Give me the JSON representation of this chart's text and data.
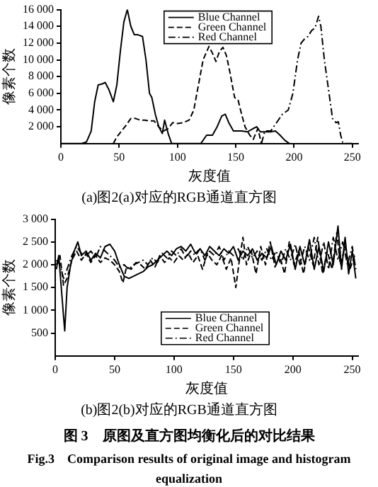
{
  "chart_data": [
    {
      "type": "line",
      "title": "(a)图2(a)对应的RGB通道直方图",
      "xlabel": "灰度值",
      "ylabel": "像素个数",
      "xlim": [
        0,
        255
      ],
      "xticks": [
        0,
        50,
        100,
        150,
        200,
        250
      ],
      "ylim": [
        0,
        16000
      ],
      "yticks": [
        {
          "value": 2000,
          "label": "2 000"
        },
        {
          "value": 4000,
          "label": "4 000"
        },
        {
          "value": 6000,
          "label": "6 000"
        },
        {
          "value": 8000,
          "label": "8 000"
        },
        {
          "value": 10000,
          "label": "10 000"
        },
        {
          "value": 12000,
          "label": "12 000"
        },
        {
          "value": 14000,
          "label": "14 000"
        },
        {
          "value": 16000,
          "label": "16 000"
        }
      ],
      "grid": false,
      "legend": "top",
      "marker": "none",
      "series": [
        {
          "name": "Blue Channel",
          "color": "#000000",
          "line_style": "solid",
          "x": [
            0,
            18,
            22,
            26,
            29,
            32,
            35,
            38,
            41,
            45,
            48,
            51,
            54,
            57,
            60,
            63,
            66,
            70,
            73,
            76,
            78,
            81,
            84,
            87,
            89,
            92,
            95,
            120,
            125,
            130,
            134,
            138,
            141,
            144,
            148,
            155,
            160,
            165,
            168,
            171,
            176,
            180,
            184,
            188,
            192,
            196
          ],
          "values": [
            0,
            0,
            200,
            1500,
            5000,
            7000,
            7100,
            7300,
            6500,
            5000,
            7000,
            11000,
            14500,
            16000,
            14000,
            13000,
            13000,
            12800,
            10000,
            6000,
            5500,
            3500,
            2000,
            1200,
            2800,
            1200,
            0,
            0,
            1000,
            1000,
            2000,
            3300,
            3500,
            2500,
            1500,
            1500,
            1400,
            1800,
            2000,
            1400,
            1400,
            1400,
            1500,
            1000,
            400,
            0
          ]
        },
        {
          "name": "Green Channel",
          "color": "#000000",
          "line_style": "dashed",
          "x": [
            45,
            48,
            52,
            56,
            60,
            64,
            68,
            72,
            76,
            80,
            84,
            88,
            92,
            96,
            100,
            105,
            110,
            114,
            118,
            122,
            127,
            130,
            133,
            136,
            139,
            142,
            145,
            149,
            152,
            155,
            158,
            162,
            165,
            169,
            172
          ],
          "values": [
            0,
            800,
            1500,
            2200,
            3000,
            3000,
            2800,
            2800,
            2700,
            2700,
            2000,
            1500,
            1800,
            2500,
            2400,
            2500,
            2800,
            4000,
            7000,
            10000,
            11600,
            10800,
            9800,
            11000,
            11500,
            10500,
            8500,
            5500,
            5200,
            3500,
            2000,
            1000,
            500,
            1800,
            0
          ]
        },
        {
          "name": "Red Channel",
          "color": "#000000",
          "line_style": "dotted",
          "x": [
            172,
            175,
            180,
            185,
            190,
            195,
            199,
            203,
            206,
            209,
            212,
            215,
            218,
            221,
            223,
            226,
            228,
            231,
            233,
            236,
            238,
            240,
            242,
            250
          ],
          "values": [
            0,
            1500,
            1500,
            2500,
            3500,
            4000,
            6000,
            10000,
            12000,
            12500,
            12800,
            13500,
            13800,
            15200,
            14000,
            10000,
            8000,
            5000,
            3000,
            2500,
            2600,
            1000,
            0,
            0
          ]
        }
      ]
    },
    {
      "type": "line",
      "title": "(b)图2(b)对应的RGB通道直方图",
      "xlabel": "灰度值",
      "ylabel": "像素个数",
      "xlim": [
        0,
        255
      ],
      "xticks": [
        0,
        50,
        100,
        150,
        200,
        250
      ],
      "ylim": [
        0,
        3000
      ],
      "yticks": [
        500,
        {
          "value": 1000,
          "label": "1 000"
        },
        {
          "value": 1500,
          "label": "1 500"
        },
        {
          "value": 2000,
          "label": "2 000"
        },
        {
          "value": 2500,
          "label": "2 500"
        },
        {
          "value": 3000,
          "label": "3 000"
        }
      ],
      "grid": false,
      "legend": "bottom",
      "marker": "none",
      "annotations": [
        "图 3　原图及直方图均衡化后的对比结果",
        "Fig.3　Comparison results of original image and histogram equalization"
      ],
      "series": [
        {
          "name": "Blue Channel",
          "color": "#000000",
          "line_style": "solid",
          "x": [
            1,
            3,
            6,
            8,
            10,
            13,
            16,
            19,
            22,
            26,
            30,
            34,
            38,
            42,
            46,
            50,
            54,
            58,
            62,
            66,
            70,
            74,
            78,
            82,
            86,
            90,
            94,
            98,
            102,
            106,
            110,
            114,
            118,
            122,
            126,
            130,
            134,
            138,
            142,
            146,
            150,
            154,
            158,
            162,
            166,
            170,
            174,
            178,
            182,
            186,
            190,
            194,
            198,
            202,
            206,
            210,
            214,
            218,
            222,
            226,
            230,
            234,
            238,
            241,
            244,
            247,
            250,
            253
          ],
          "values": [
            1900,
            2200,
            1200,
            550,
            1500,
            2000,
            2300,
            2500,
            2200,
            2300,
            2100,
            2250,
            2150,
            2400,
            2450,
            2300,
            2000,
            1750,
            1700,
            1750,
            1800,
            1850,
            1950,
            2000,
            2100,
            2200,
            2300,
            2200,
            2350,
            2400,
            2300,
            2450,
            2250,
            2350,
            2200,
            2400,
            2300,
            2200,
            2350,
            2250,
            2400,
            2100,
            2300,
            2200,
            2350,
            2100,
            2250,
            2150,
            2400,
            2000,
            2300,
            2100,
            2450,
            1900,
            2400,
            2000,
            2550,
            1900,
            2400,
            1850,
            2500,
            2000,
            2850,
            1900,
            2600,
            1800,
            2300,
            1700
          ]
        },
        {
          "name": "Green Channel",
          "color": "#000000",
          "line_style": "dashed",
          "x": [
            1,
            4,
            7,
            10,
            14,
            18,
            22,
            26,
            30,
            34,
            38,
            42,
            46,
            50,
            54,
            57,
            60,
            64,
            68,
            72,
            76,
            80,
            84,
            88,
            92,
            96,
            100,
            104,
            108,
            112,
            116,
            120,
            124,
            128,
            132,
            136,
            140,
            144,
            148,
            152,
            155,
            158,
            161,
            165,
            169,
            173,
            177,
            181,
            185,
            189,
            193,
            197,
            201,
            205,
            209,
            213,
            217,
            221,
            225,
            229,
            233,
            237,
            240,
            244,
            248,
            252
          ],
          "values": [
            2000,
            2200,
            1550,
            1700,
            2100,
            2300,
            2100,
            2250,
            2050,
            2200,
            2050,
            2150,
            2100,
            2000,
            1850,
            1600,
            1950,
            1900,
            2050,
            2000,
            1900,
            2100,
            1950,
            2200,
            2050,
            2150,
            2050,
            2200,
            2100,
            2250,
            2050,
            2200,
            1900,
            2250,
            2100,
            2000,
            2200,
            1900,
            2150,
            1500,
            2100,
            2600,
            2000,
            2300,
            1800,
            2400,
            2000,
            2500,
            1950,
            2200,
            1800,
            2500,
            2000,
            2300,
            1800,
            2400,
            2000,
            2600,
            1800,
            2300,
            1900,
            2700,
            2000,
            2400,
            1900,
            2200
          ]
        },
        {
          "name": "Red Channel",
          "color": "#000000",
          "line_style": "dotted",
          "x": [
            1,
            4,
            7,
            10,
            14,
            18,
            22,
            26,
            30,
            34,
            38,
            42,
            46,
            50,
            54,
            58,
            62,
            66,
            70,
            74,
            78,
            82,
            86,
            90,
            94,
            98,
            102,
            106,
            110,
            114,
            118,
            122,
            126,
            130,
            134,
            138,
            142,
            146,
            150,
            154,
            158,
            162,
            166,
            170,
            174,
            178,
            182,
            186,
            190,
            194,
            198,
            202,
            206,
            210,
            214,
            218,
            222,
            226,
            230,
            234,
            238,
            242,
            246,
            250,
            253
          ],
          "values": [
            2100,
            2000,
            1700,
            1900,
            2200,
            2400,
            2250,
            2200,
            2300,
            2150,
            2400,
            2300,
            2200,
            2100,
            1950,
            2000,
            1900,
            2000,
            2050,
            2100,
            2000,
            2150,
            2050,
            2250,
            2150,
            2300,
            2200,
            2350,
            2150,
            2300,
            2200,
            2350,
            2100,
            2300,
            2200,
            2400,
            2100,
            2300,
            2200,
            2350,
            2100,
            2400,
            2150,
            2300,
            2100,
            2350,
            2100,
            2300,
            2000,
            2350,
            2100,
            2450,
            2000,
            2400,
            2100,
            2600,
            2000,
            2500,
            1900,
            2600,
            2100,
            2500,
            2000,
            2400,
            1900
          ]
        }
      ]
    }
  ]
}
